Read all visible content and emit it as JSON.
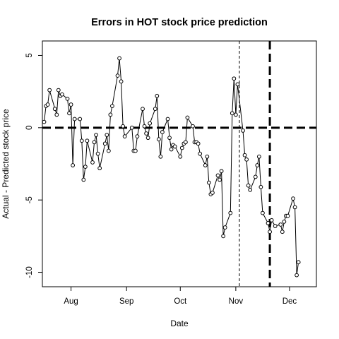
{
  "chart_data": {
    "type": "scatter",
    "title": "Errors in HOT stock price prediction",
    "xlabel": "Date",
    "ylabel": "Actual - Predicted stock price",
    "xlim": [
      "2012-07-16",
      "2012-12-16"
    ],
    "ylim": [
      -11,
      6
    ],
    "x_ticks": [
      {
        "date": "2012-08-01",
        "label": "Aug"
      },
      {
        "date": "2012-09-01",
        "label": "Sep"
      },
      {
        "date": "2012-10-01",
        "label": "Oct"
      },
      {
        "date": "2012-11-01",
        "label": "Nov"
      },
      {
        "date": "2012-12-01",
        "label": "Dec"
      }
    ],
    "y_ticks": [
      {
        "value": 5,
        "label": "5"
      },
      {
        "value": 0,
        "label": "0"
      },
      {
        "value": -5,
        "label": "-5"
      },
      {
        "value": -10,
        "label": "-10"
      }
    ],
    "style": "points joined by lines",
    "reference_lines": [
      {
        "orientation": "horizontal",
        "value": 0,
        "style": "thick-dashed"
      },
      {
        "orientation": "vertical",
        "date": "2012-11-03",
        "style": "thin-dashed"
      },
      {
        "orientation": "vertical",
        "date": "2012-11-20",
        "style": "thick-dashed"
      }
    ],
    "series": [
      {
        "x": [
          "2012-07-17",
          "2012-07-18",
          "2012-07-19",
          "2012-07-20",
          "2012-07-23",
          "2012-07-24",
          "2012-07-25",
          "2012-07-26",
          "2012-07-27",
          "2012-07-30",
          "2012-07-31",
          "2012-08-01",
          "2012-08-02",
          "2012-08-03",
          "2012-08-06",
          "2012-08-07",
          "2012-08-08",
          "2012-08-09",
          "2012-08-10",
          "2012-08-13",
          "2012-08-14",
          "2012-08-15",
          "2012-08-16",
          "2012-08-17",
          "2012-08-20",
          "2012-08-21",
          "2012-08-22",
          "2012-08-23",
          "2012-08-24",
          "2012-08-27",
          "2012-08-28",
          "2012-08-29",
          "2012-08-30",
          "2012-08-31",
          "2012-09-04",
          "2012-09-05",
          "2012-09-06",
          "2012-09-07",
          "2012-09-10",
          "2012-09-11",
          "2012-09-12",
          "2012-09-13",
          "2012-09-14",
          "2012-09-17",
          "2012-09-18",
          "2012-09-19",
          "2012-09-20",
          "2012-09-21",
          "2012-09-24",
          "2012-09-25",
          "2012-09-26",
          "2012-09-27",
          "2012-09-28",
          "2012-10-01",
          "2012-10-02",
          "2012-10-03",
          "2012-10-04",
          "2012-10-05",
          "2012-10-08",
          "2012-10-09",
          "2012-10-10",
          "2012-10-11",
          "2012-10-12",
          "2012-10-15",
          "2012-10-16",
          "2012-10-17",
          "2012-10-18",
          "2012-10-19",
          "2012-10-22",
          "2012-10-23",
          "2012-10-24",
          "2012-10-25",
          "2012-10-26",
          "2012-10-29",
          "2012-10-30",
          "2012-10-31",
          "2012-11-01",
          "2012-11-02",
          "2012-11-05",
          "2012-11-06",
          "2012-11-07",
          "2012-11-08",
          "2012-11-09",
          "2012-11-12",
          "2012-11-13",
          "2012-11-14",
          "2012-11-15",
          "2012-11-16",
          "2012-11-19",
          "2012-11-20",
          "2012-11-21",
          "2012-11-23",
          "2012-11-26",
          "2012-11-27",
          "2012-11-28",
          "2012-11-29",
          "2012-11-30",
          "2012-12-03",
          "2012-12-04",
          "2012-12-05",
          "2012-12-06"
        ],
        "y": [
          0.4,
          1.5,
          1.6,
          2.6,
          1.3,
          0.9,
          2.6,
          2.2,
          2.3,
          2.0,
          1.0,
          1.6,
          -2.6,
          0.6,
          0.6,
          -0.9,
          -3.6,
          -2.7,
          -0.9,
          -2.4,
          -1.0,
          -0.5,
          -1.8,
          -2.8,
          -1.1,
          -0.5,
          -1.6,
          0.9,
          1.5,
          3.6,
          4.8,
          3.2,
          0.1,
          -0.6,
          0.0,
          -1.6,
          -1.6,
          -0.6,
          1.3,
          0.1,
          -0.4,
          -0.7,
          0.3,
          1.3,
          2.2,
          -0.8,
          -2.0,
          -0.3,
          0.6,
          -0.7,
          -1.5,
          -1.2,
          -1.3,
          -2.0,
          -1.4,
          -1.1,
          -1.0,
          0.7,
          0.1,
          -1.0,
          -1.0,
          -1.1,
          -1.8,
          -2.6,
          -2.0,
          -3.8,
          -4.6,
          -4.5,
          -3.3,
          -3.6,
          -3.0,
          -7.5,
          -6.9,
          -5.9,
          1.0,
          3.4,
          0.9,
          3.0,
          -0.2,
          -1.9,
          -2.2,
          -4.0,
          -4.3,
          -3.4,
          -2.6,
          -2.0,
          -4.1,
          -5.9,
          -6.6,
          -7.2,
          -6.4,
          -6.8,
          -6.7,
          -7.2,
          -6.5,
          -6.1,
          -6.1,
          -4.9,
          -5.5,
          -10.2,
          -9.3
        ],
        "point_marker": "open circle"
      }
    ]
  }
}
